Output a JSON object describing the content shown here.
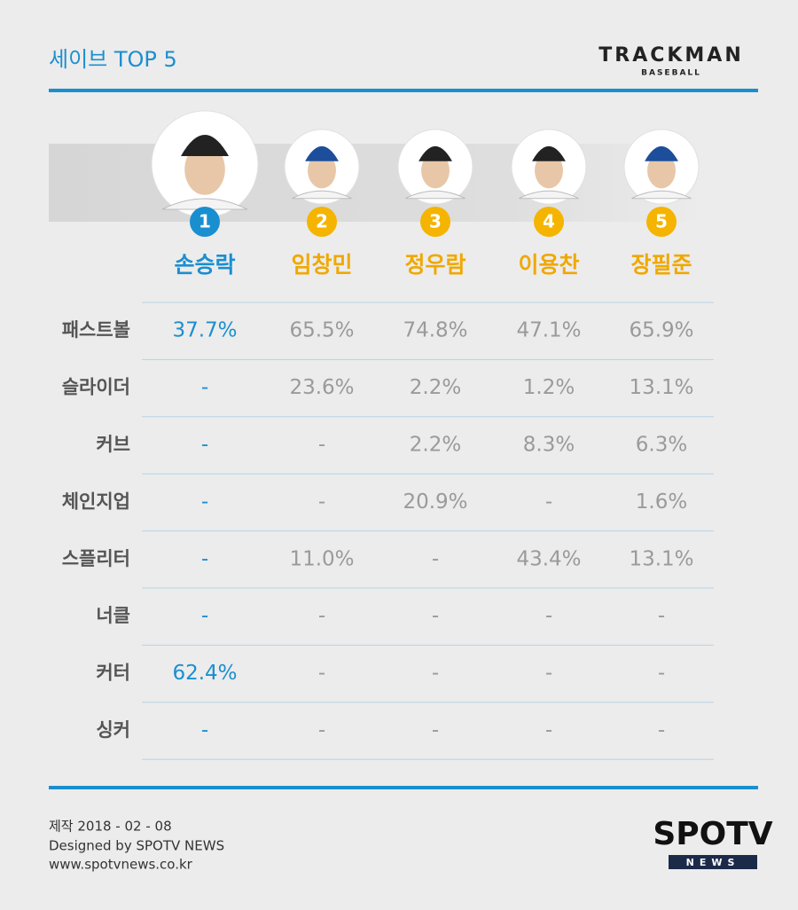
{
  "header": {
    "title": "세이브 TOP 5",
    "logo": "TRACKMAN",
    "logo_sub": "BASEBALL"
  },
  "players": [
    {
      "rank": "1",
      "name": "손승락"
    },
    {
      "rank": "2",
      "name": "임창민"
    },
    {
      "rank": "3",
      "name": "정우람"
    },
    {
      "rank": "4",
      "name": "이용찬"
    },
    {
      "rank": "5",
      "name": "장필준"
    }
  ],
  "table": {
    "rows": [
      {
        "label": "패스트볼",
        "cells": [
          "37.7%",
          "65.5%",
          "74.8%",
          "47.1%",
          "65.9%"
        ]
      },
      {
        "label": "슬라이더",
        "cells": [
          "-",
          "23.6%",
          "2.2%",
          "1.2%",
          "13.1%"
        ]
      },
      {
        "label": "커브",
        "cells": [
          "-",
          "-",
          "2.2%",
          "8.3%",
          "6.3%"
        ]
      },
      {
        "label": "체인지업",
        "cells": [
          "-",
          "-",
          "20.9%",
          "-",
          "1.6%"
        ]
      },
      {
        "label": "스플리터",
        "cells": [
          "-",
          "11.0%",
          "-",
          "43.4%",
          "13.1%"
        ]
      },
      {
        "label": "너클",
        "cells": [
          "-",
          "-",
          "-",
          "-",
          "-"
        ]
      },
      {
        "label": "커터",
        "cells": [
          "62.4%",
          "-",
          "-",
          "-",
          "-"
        ]
      },
      {
        "label": "싱커",
        "cells": [
          "-",
          "-",
          "-",
          "-",
          "-"
        ]
      }
    ]
  },
  "footer": {
    "date": "제작 2018 - 02 - 08",
    "credit": "Designed by SPOTV NEWS",
    "url": "www.spotvnews.co.kr",
    "logo": "SPOTV",
    "logo_sub": "NEWS"
  }
}
